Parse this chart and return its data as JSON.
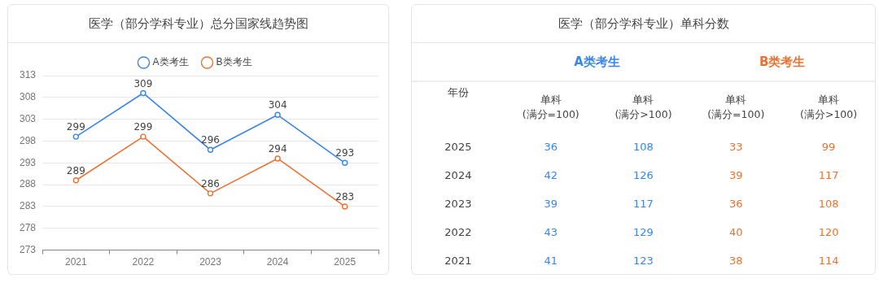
{
  "chart_data": [
    {
      "type": "line",
      "title": "医学（部分学科专业）总分国家线趋势图",
      "categories": [
        "2021",
        "2022",
        "2023",
        "2024",
        "2025"
      ],
      "series": [
        {
          "name": "A类考生",
          "color": "#3b86e8",
          "values": [
            299,
            309,
            296,
            304,
            293
          ]
        },
        {
          "name": "B类考生",
          "color": "#ea7333",
          "values": [
            289,
            299,
            286,
            294,
            283
          ]
        }
      ],
      "ylim": [
        273,
        313
      ],
      "yticks": [
        273,
        278,
        283,
        288,
        293,
        298,
        303,
        308,
        313
      ],
      "grid": "y",
      "legend": "top",
      "marker": "circle",
      "line_style": "solid",
      "data_labels": true
    },
    {
      "type": "heatmap",
      "title": "医学（部分学科专业）单科分数",
      "ylabel": "年份",
      "categories": [
        "单科\n(满分=100)",
        "单科\n(满分>100)",
        "单科\n(满分=100)",
        "单科\n(满分>100)"
      ],
      "y_categories": [
        "2025",
        "2024",
        "2023",
        "2022",
        "2021"
      ],
      "annotations": [
        "A类考生",
        "B类考生"
      ],
      "colors": [
        "#3b86e8",
        "#3b86e8",
        "#ea7333",
        "#ea7333"
      ],
      "cells": [
        [
          36,
          108,
          33,
          99
        ],
        [
          42,
          126,
          39,
          117
        ],
        [
          39,
          117,
          36,
          108
        ],
        [
          43,
          129,
          40,
          120
        ],
        [
          41,
          123,
          38,
          114
        ]
      ],
      "data_labels": true
    }
  ]
}
